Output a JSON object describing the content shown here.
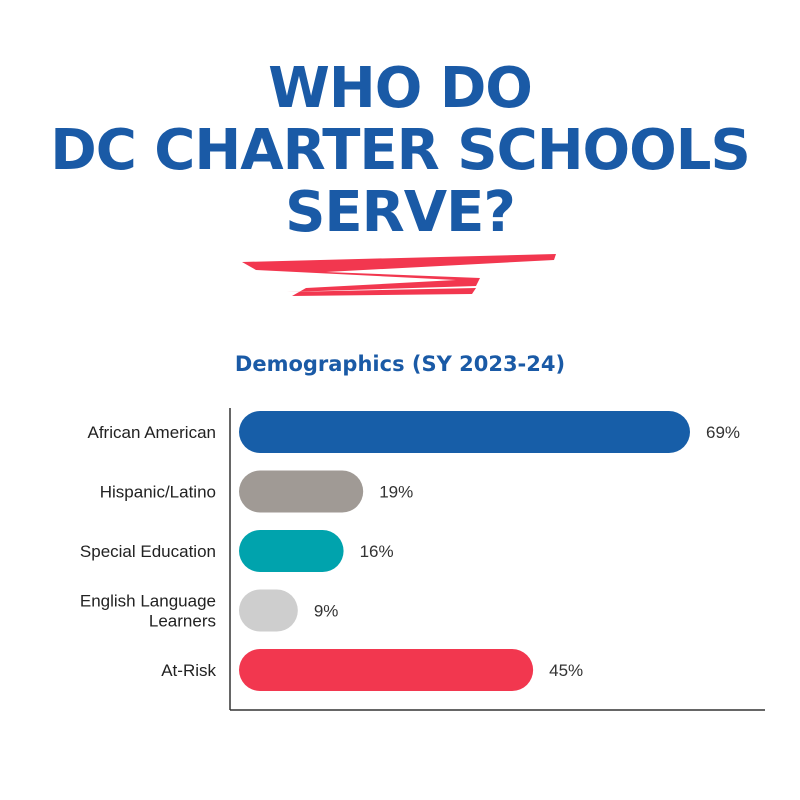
{
  "headline": {
    "line1": "WHO DO",
    "line2": "DC CHARTER SCHOOLS",
    "line3": "SERVE?"
  },
  "colors": {
    "headline": "#1a5aa6",
    "accent_swoosh": "#f2374f",
    "axis": "#333333"
  },
  "chart_data": {
    "type": "bar",
    "orientation": "horizontal",
    "title": "Demographics (SY 2023-24)",
    "categories": [
      "African American",
      "Hispanic/Latino",
      "Special Education",
      "English Language Learners",
      "At-Risk"
    ],
    "values": [
      69,
      19,
      16,
      9,
      45
    ],
    "value_labels": [
      "69%",
      "19%",
      "16%",
      "9%",
      "45%"
    ],
    "bar_colors": [
      "#175ea8",
      "#a09a95",
      "#00a3ad",
      "#cecece",
      "#f2374f"
    ],
    "xlim": [
      0,
      100
    ],
    "grid": false,
    "legend": "none"
  }
}
